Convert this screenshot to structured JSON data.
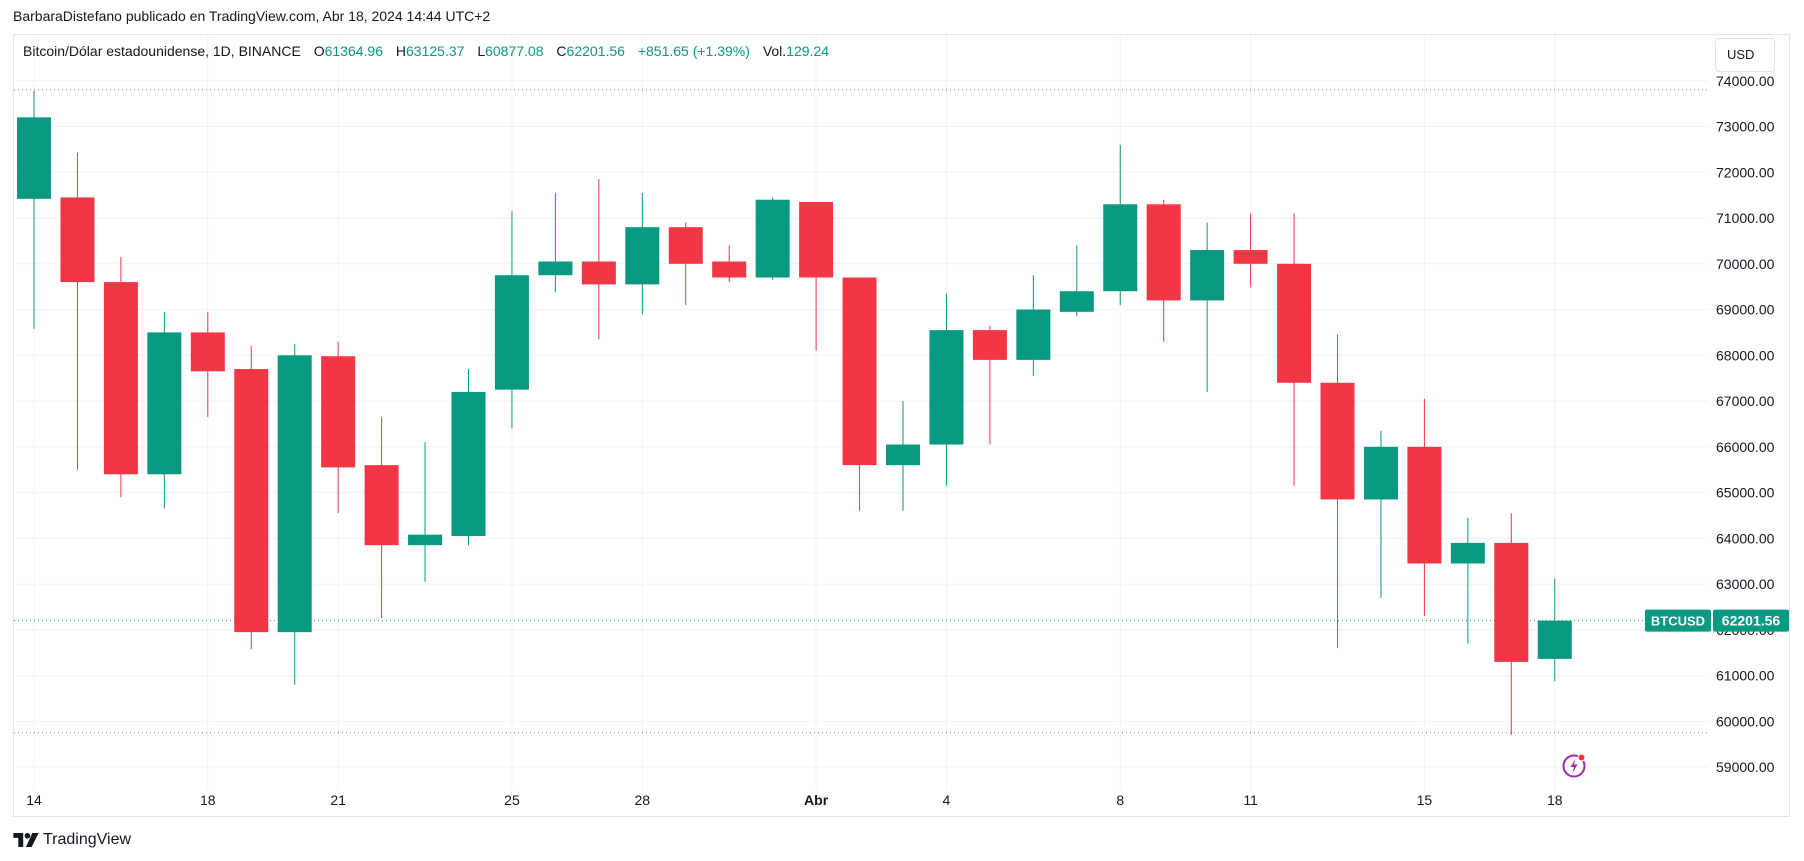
{
  "header": {
    "publish_line": "BarbaraDistefano publicado en TradingView.com, Abr 18, 2024 14:44 UTC+2"
  },
  "legend": {
    "symbol": "Bitcoin/Dólar estadounidense, 1D, BINANCE",
    "open_label": "O",
    "open": "61364.96",
    "high_label": "H",
    "high": "63125.37",
    "low_label": "L",
    "low": "60877.08",
    "close_label": "C",
    "close": "62201.56",
    "change": "+851.65 (+1.39%)",
    "volume_label": "Vol.",
    "volume": "129.24"
  },
  "currency_button": "USD",
  "price_tag": {
    "symbol": "BTCUSD",
    "price": "62201.56"
  },
  "footer": {
    "brand": "TradingView"
  },
  "colors": {
    "up": "#089981",
    "down": "#f23645",
    "grid": "#f0f3fa",
    "axis_text": "#131722"
  },
  "chart_data": {
    "type": "candlestick",
    "y_ticks": [
      "74000.00",
      "73000.00",
      "72000.00",
      "71000.00",
      "70000.00",
      "69000.00",
      "68000.00",
      "67000.00",
      "66000.00",
      "65000.00",
      "64000.00",
      "63000.00",
      "62000.00",
      "61000.00",
      "60000.00",
      "59000.00"
    ],
    "x_ticks": [
      {
        "label": "14",
        "index": 0
      },
      {
        "label": "18",
        "index": 4
      },
      {
        "label": "21",
        "index": 7
      },
      {
        "label": "25",
        "index": 11
      },
      {
        "label": "28",
        "index": 14
      },
      {
        "label": "Abr",
        "index": 18,
        "bold": true
      },
      {
        "label": "4",
        "index": 21
      },
      {
        "label": "8",
        "index": 25
      },
      {
        "label": "11",
        "index": 28
      },
      {
        "label": "15",
        "index": 32
      },
      {
        "label": "18",
        "index": 35
      }
    ],
    "ylim": [
      58500,
      75000
    ],
    "dotted_levels": [
      73800,
      59750
    ],
    "last_price": 62201.56,
    "candles": [
      {
        "o": 71420,
        "h": 73780,
        "l": 68580,
        "c": 73200
      },
      {
        "o": 71450,
        "h": 72430,
        "l": 65500,
        "c": 69600
      },
      {
        "o": 69600,
        "h": 70150,
        "l": 64900,
        "c": 65400
      },
      {
        "o": 65400,
        "h": 68950,
        "l": 64650,
        "c": 68500
      },
      {
        "o": 68500,
        "h": 68950,
        "l": 66650,
        "c": 67650
      },
      {
        "o": 67700,
        "h": 68200,
        "l": 61580,
        "c": 61950
      },
      {
        "o": 61950,
        "h": 68250,
        "l": 60800,
        "c": 68000
      },
      {
        "o": 67980,
        "h": 68300,
        "l": 64550,
        "c": 65550
      },
      {
        "o": 65600,
        "h": 66650,
        "l": 62250,
        "c": 63850
      },
      {
        "o": 63850,
        "h": 66100,
        "l": 63050,
        "c": 64080
      },
      {
        "o": 64050,
        "h": 67700,
        "l": 63850,
        "c": 67200
      },
      {
        "o": 67250,
        "h": 71150,
        "l": 66400,
        "c": 69750
      },
      {
        "o": 69750,
        "h": 71550,
        "l": 69380,
        "c": 70050
      },
      {
        "o": 70050,
        "h": 71850,
        "l": 68350,
        "c": 69550
      },
      {
        "o": 69550,
        "h": 71550,
        "l": 68900,
        "c": 70800
      },
      {
        "o": 70800,
        "h": 70900,
        "l": 69100,
        "c": 70000
      },
      {
        "o": 70050,
        "h": 70400,
        "l": 69600,
        "c": 69700
      },
      {
        "o": 69700,
        "h": 71450,
        "l": 69650,
        "c": 71400
      },
      {
        "o": 71350,
        "h": 71350,
        "l": 68100,
        "c": 69700
      },
      {
        "o": 69700,
        "h": 69700,
        "l": 64600,
        "c": 65600
      },
      {
        "o": 65600,
        "h": 67000,
        "l": 64600,
        "c": 66050
      },
      {
        "o": 66050,
        "h": 69350,
        "l": 65150,
        "c": 68550
      },
      {
        "o": 68550,
        "h": 68650,
        "l": 66050,
        "c": 67900
      },
      {
        "o": 67900,
        "h": 69750,
        "l": 67550,
        "c": 69000
      },
      {
        "o": 68950,
        "h": 70400,
        "l": 68850,
        "c": 69400
      },
      {
        "o": 69400,
        "h": 72600,
        "l": 69100,
        "c": 71300
      },
      {
        "o": 71300,
        "h": 71400,
        "l": 68300,
        "c": 69200
      },
      {
        "o": 69200,
        "h": 70900,
        "l": 67200,
        "c": 70300
      },
      {
        "o": 70300,
        "h": 71100,
        "l": 69500,
        "c": 70000
      },
      {
        "o": 70000,
        "h": 71100,
        "l": 65150,
        "c": 67400
      },
      {
        "o": 67400,
        "h": 68450,
        "l": 61600,
        "c": 64850
      },
      {
        "o": 64850,
        "h": 66350,
        "l": 62700,
        "c": 66000
      },
      {
        "o": 66000,
        "h": 67050,
        "l": 62300,
        "c": 63450
      },
      {
        "o": 63450,
        "h": 64450,
        "l": 61700,
        "c": 63900
      },
      {
        "o": 63900,
        "h": 64550,
        "l": 59700,
        "c": 61300
      },
      {
        "o": 61365,
        "h": 63125,
        "l": 60877,
        "c": 62201.56
      }
    ]
  }
}
